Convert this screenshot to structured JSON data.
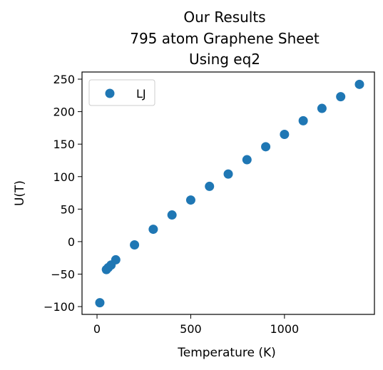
{
  "chart_data": {
    "type": "scatter",
    "title_lines": [
      "Our Results",
      "795 atom Graphene Sheet",
      "Using eq2"
    ],
    "xlabel": "Temperature (K)",
    "ylabel": "U(T)",
    "xlim": [
      -80,
      1480
    ],
    "ylim": [
      -112,
      261
    ],
    "xticks": [
      0,
      500,
      1000
    ],
    "yticks": [
      -100,
      -50,
      0,
      50,
      100,
      150,
      200,
      250
    ],
    "grid": false,
    "legend_position": "top-left",
    "series": [
      {
        "name": "LJ",
        "color": "#1f77b4",
        "x": [
          15,
          50,
          60,
          75,
          100,
          200,
          300,
          400,
          500,
          600,
          700,
          800,
          900,
          1000,
          1100,
          1200,
          1300,
          1400
        ],
        "y": [
          -94,
          -43,
          -40,
          -36,
          -28,
          -5,
          19,
          41,
          64,
          85,
          104,
          126,
          146,
          165,
          186,
          205,
          223,
          242
        ]
      }
    ]
  }
}
